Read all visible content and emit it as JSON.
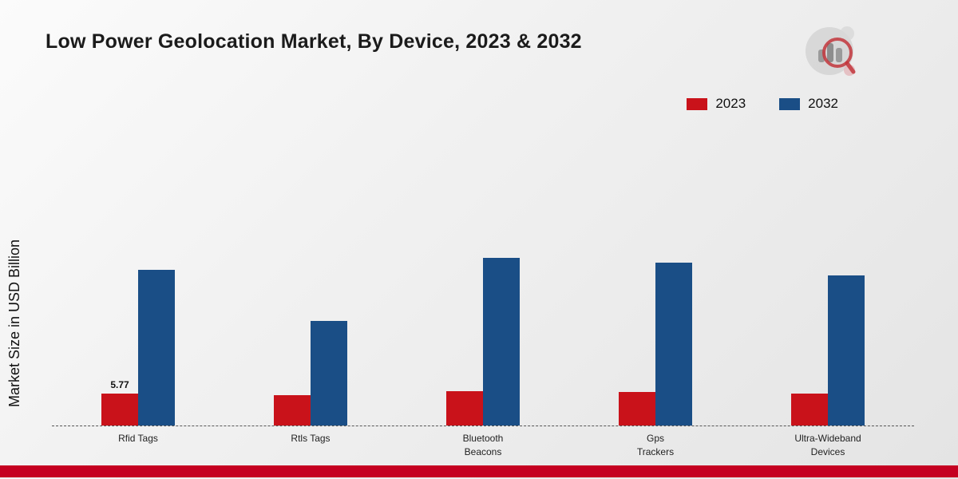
{
  "title": "Low Power Geolocation Market, By Device, 2023 & 2032",
  "y_axis_label": "Market Size in USD Billion",
  "colors": {
    "series_2023": "#c9121a",
    "series_2032": "#1a4e86",
    "bottom_strip": "#c50021",
    "baseline": "#555555"
  },
  "chart_data": {
    "type": "bar",
    "categories": [
      "Rfid Tags",
      "Rtls Tags",
      "Bluetooth\nBeacons",
      "Gps\nTrackers",
      "Ultra-Wideband\nDevices"
    ],
    "series": [
      {
        "name": "2023",
        "color": "#c9121a",
        "values": [
          5.77,
          5.5,
          6.2,
          6.1,
          5.8
        ]
      },
      {
        "name": "2032",
        "color": "#1a4e86",
        "values": [
          28.0,
          18.8,
          30.2,
          29.3,
          27.0
        ]
      }
    ],
    "value_label": {
      "series_index": 0,
      "category_index": 0,
      "text": "5.77"
    },
    "ylim": [
      0,
      55
    ],
    "grid": false,
    "legend_position": "top-right",
    "title": "Low Power Geolocation Market, By Device, 2023 & 2032",
    "xlabel": "",
    "ylabel": "Market Size in USD Billion"
  }
}
